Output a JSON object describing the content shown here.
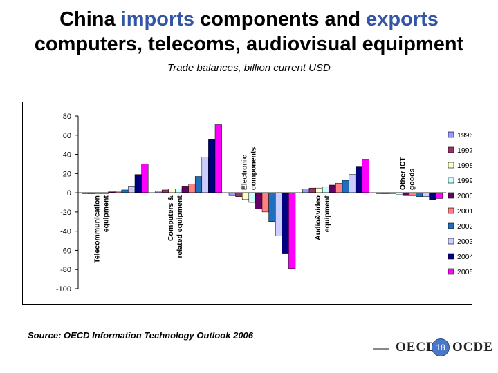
{
  "header": {
    "title_line1_pre": "China ",
    "title_line1_imports": "imports",
    "title_line1_mid": " components and ",
    "title_line1_exports": "exports",
    "title_line2": "computers, telecoms, audiovisual equipment",
    "subtitle": "Trade balances, billion current USD",
    "highlight_color": "#3355a6"
  },
  "footer": {
    "source": "Source: OECD Information Technology Outlook 2006",
    "logo_left": "OECD",
    "logo_right": "OCDE",
    "page_number": "18"
  },
  "chart_data": {
    "type": "bar",
    "title": "",
    "xlabel": "",
    "ylabel": "",
    "ylim": [
      -100,
      80
    ],
    "yticks": [
      80,
      60,
      40,
      20,
      0,
      -20,
      -40,
      -60,
      -80,
      -100
    ],
    "grid": false,
    "legend_position": "right",
    "categories": [
      "Telecommunication equipment",
      "Computers & related equipment",
      "Electronic components",
      "Audio&video equipment",
      "Other ICT goods"
    ],
    "series": [
      {
        "name": "1996",
        "color": "#9999ff",
        "values": [
          -1,
          2,
          -3,
          4,
          -1
        ]
      },
      {
        "name": "1997",
        "color": "#993366",
        "values": [
          -1,
          3,
          -4,
          5,
          -1
        ]
      },
      {
        "name": "1998",
        "color": "#ffffcc",
        "values": [
          -1,
          4,
          -7,
          5,
          -1
        ]
      },
      {
        "name": "1999",
        "color": "#ccffff",
        "values": [
          -1,
          4,
          -10,
          6,
          -2
        ]
      },
      {
        "name": "2000",
        "color": "#660066",
        "values": [
          1,
          7,
          -17,
          8,
          -3
        ]
      },
      {
        "name": "2001",
        "color": "#ff8080",
        "values": [
          2,
          9,
          -20,
          10,
          -3
        ]
      },
      {
        "name": "2002",
        "color": "#1f6fbf",
        "values": [
          3,
          17,
          -30,
          13,
          -4
        ]
      },
      {
        "name": "2003",
        "color": "#ccccff",
        "values": [
          7,
          37,
          -45,
          19,
          -4
        ]
      },
      {
        "name": "2004",
        "color": "#000080",
        "values": [
          19,
          56,
          -63,
          27,
          -7
        ]
      },
      {
        "name": "2005",
        "color": "#ff00ff",
        "values": [
          30,
          71,
          -79,
          35,
          -6
        ]
      }
    ]
  }
}
